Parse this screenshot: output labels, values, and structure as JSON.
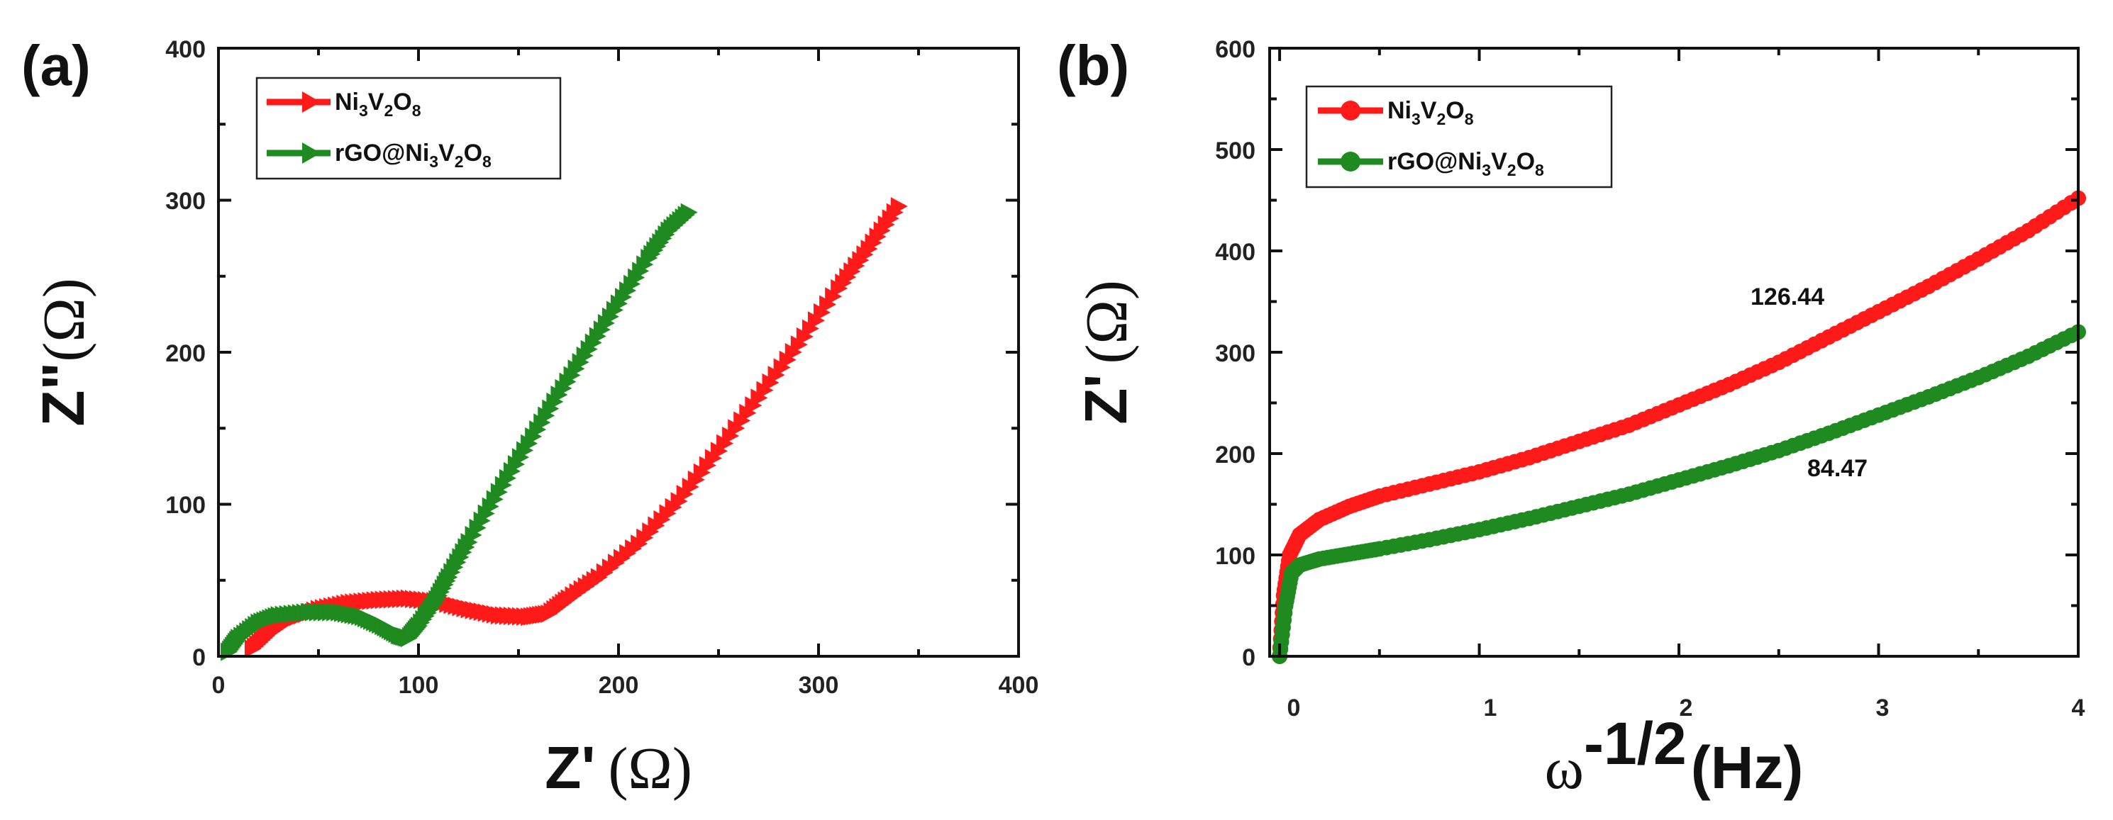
{
  "chart_data": [
    {
      "type": "scatter",
      "panel_label": "(a)",
      "xlabel": "Z'",
      "xlabel_unit": "(Ω)",
      "ylabel": "Z\"",
      "ylabel_unit": "(Ω)",
      "xlim": [
        0,
        400
      ],
      "ylim": [
        0,
        400
      ],
      "xticks": [
        "0",
        "100",
        "200",
        "300",
        "400"
      ],
      "yticks": [
        "0",
        "100",
        "200",
        "300",
        "400"
      ],
      "legend_position": "top-left",
      "marker": "triangle-right",
      "series": [
        {
          "name": "Ni3V2O8",
          "legend": {
            "base1": "Ni",
            "sub1": "3",
            "base2": "V",
            "sub2": "2",
            "base3": "O",
            "sub3": "8"
          },
          "color": "#ff1a1a",
          "x": [
            17,
            25,
            35,
            50,
            65,
            80,
            95,
            110,
            125,
            140,
            155,
            165,
            175,
            190,
            210,
            230,
            250,
            270,
            290,
            310,
            325,
            340
          ],
          "y": [
            5,
            15,
            24,
            31,
            35,
            37,
            38,
            36,
            31,
            27,
            26,
            28,
            38,
            52,
            74,
            102,
            135,
            170,
            205,
            242,
            268,
            296
          ]
        },
        {
          "name": "rGO@Ni3V2O8",
          "legend": {
            "prefix": "rGO@",
            "base1": "Ni",
            "sub1": "3",
            "base2": "V",
            "sub2": "2",
            "base3": "O",
            "sub3": "8"
          },
          "color": "#1f8a1f",
          "x": [
            5,
            10,
            20,
            30,
            45,
            60,
            72,
            82,
            90,
            95,
            100,
            108,
            115,
            125,
            140,
            155,
            170,
            185,
            200,
            215,
            225,
            235
          ],
          "y": [
            3,
            12,
            22,
            27,
            29,
            29,
            26,
            20,
            14,
            12,
            20,
            35,
            52,
            75,
            108,
            140,
            172,
            202,
            232,
            262,
            280,
            292
          ]
        }
      ]
    },
    {
      "type": "scatter",
      "panel_label": "(b)",
      "xlabel": "ω",
      "xlabel_sup": "-1/2",
      "xlabel_unit": "(Hz)",
      "ylabel": "Z'",
      "ylabel_unit": "(Ω)",
      "xlim": [
        -0.05,
        4
      ],
      "ylim": [
        0,
        600
      ],
      "xticks": [
        "0",
        "1",
        "2",
        "3",
        "4"
      ],
      "yticks": [
        "0",
        "100",
        "200",
        "300",
        "400",
        "500",
        "600"
      ],
      "legend_position": "top-left",
      "marker": "circle",
      "annotations": [
        {
          "text": "126.44",
          "x": 2.55,
          "y": 350
        },
        {
          "text": "84.47",
          "x": 2.75,
          "y": 185
        }
      ],
      "series": [
        {
          "name": "Ni3V2O8",
          "legend": {
            "base1": "Ni",
            "sub1": "3",
            "base2": "V",
            "sub2": "2",
            "base3": "O",
            "sub3": "8"
          },
          "color": "#ff1a1a",
          "x": [
            0,
            0.02,
            0.05,
            0.1,
            0.2,
            0.35,
            0.5,
            0.75,
            1.0,
            1.25,
            1.5,
            1.75,
            2.0,
            2.25,
            2.5,
            2.75,
            3.0,
            3.25,
            3.5,
            3.75,
            4.0
          ],
          "y": [
            0,
            60,
            100,
            120,
            135,
            148,
            158,
            170,
            182,
            196,
            212,
            228,
            248,
            268,
            290,
            315,
            340,
            365,
            392,
            420,
            452
          ]
        },
        {
          "name": "rGO@Ni3V2O8",
          "legend": {
            "prefix": "rGO@",
            "base1": "Ni",
            "sub1": "3",
            "base2": "V",
            "sub2": "2",
            "base3": "O",
            "sub3": "8"
          },
          "color": "#1f8a1f",
          "x": [
            0,
            0.03,
            0.06,
            0.1,
            0.2,
            0.35,
            0.5,
            0.75,
            1.0,
            1.25,
            1.5,
            1.75,
            2.0,
            2.25,
            2.5,
            2.75,
            3.0,
            3.25,
            3.5,
            3.75,
            4.0
          ],
          "y": [
            0,
            50,
            82,
            90,
            96,
            101,
            106,
            115,
            125,
            136,
            148,
            160,
            174,
            188,
            203,
            220,
            238,
            256,
            275,
            296,
            320
          ]
        }
      ]
    }
  ]
}
